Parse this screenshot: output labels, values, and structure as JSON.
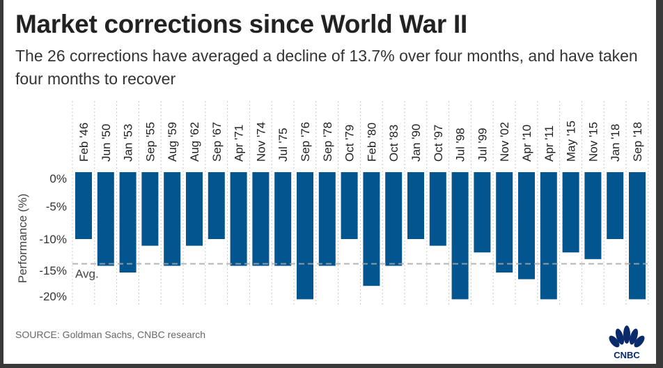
{
  "header": {
    "title": "Market corrections since World War II",
    "subtitle": "The 26 corrections have averaged a decline of 13.7% over four months, and have taken four months to recover"
  },
  "footer": {
    "source": "SOURCE: Goldman Sachs, CNBC research",
    "logo": "CNBC"
  },
  "colors": {
    "bar": "#02558f",
    "avg_line": "#a8a8a8",
    "grid": "#c8c8c8"
  },
  "chart_data": {
    "type": "bar",
    "title": "Market corrections since World War II",
    "ylabel": "Performance (%)",
    "xlabel": "",
    "ylim": [
      -20,
      0
    ],
    "yticks": [
      0,
      -5,
      -10,
      -15,
      -20
    ],
    "ytick_labels": [
      "0%",
      "-5%",
      "-10%",
      "-15%",
      "-20%"
    ],
    "grid": "vertical dotted",
    "categories": [
      "Feb '46",
      "Jun '50",
      "Jan '53",
      "Sep '55",
      "Aug '59",
      "Aug '62",
      "Sep '67",
      "Apr '71",
      "Nov '74",
      "Jul '75",
      "Sep '76",
      "Sep '78",
      "Oct '79",
      "Feb '80",
      "Oct '83",
      "Jan '90",
      "Oct '97",
      "Jul '98",
      "Jul '99",
      "Nov '02",
      "Apr '10",
      "Apr '11",
      "May '15",
      "Nov '15",
      "Jan '18",
      "Sep '18"
    ],
    "values": [
      -10,
      -14,
      -15,
      -11,
      -14,
      -11,
      -10,
      -14,
      -14,
      -14,
      -19,
      -14,
      -10,
      -17,
      -14,
      -10,
      -11,
      -19,
      -12,
      -15,
      -16,
      -19,
      -12,
      -13,
      -10,
      -19
    ],
    "average": {
      "value": -13.7,
      "label": "Avg."
    }
  }
}
